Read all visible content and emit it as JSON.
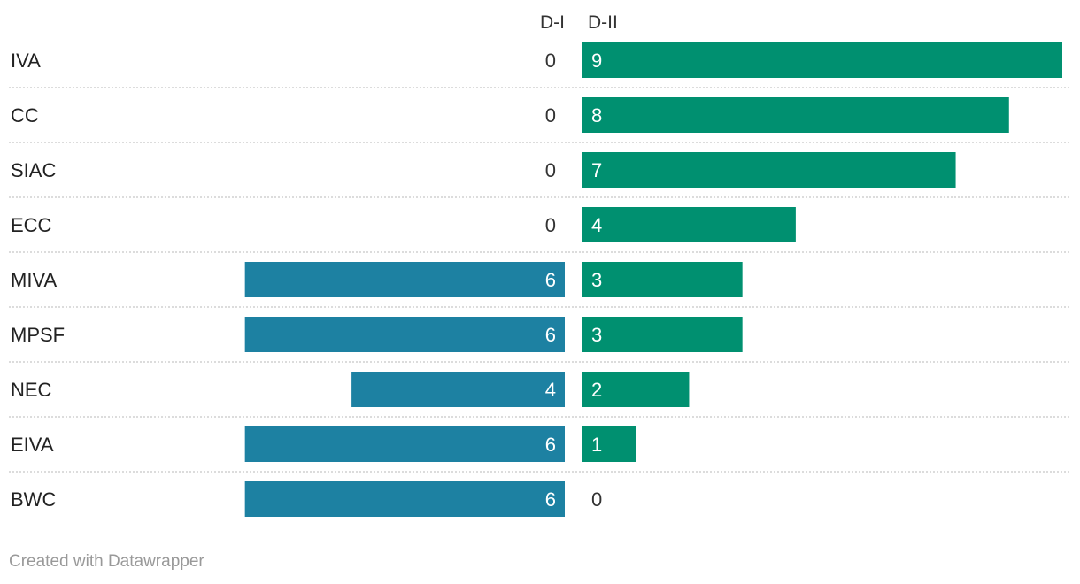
{
  "chart_data": {
    "type": "bar",
    "orientation": "horizontal",
    "categories": [
      "IVA",
      "CC",
      "SIAC",
      "ECC",
      "MIVA",
      "MPSF",
      "NEC",
      "EIVA",
      "BWC"
    ],
    "series": [
      {
        "name": "D-I",
        "values": [
          0,
          0,
          0,
          0,
          6,
          6,
          4,
          6,
          6
        ],
        "color": "#1d81a2"
      },
      {
        "name": "D-II",
        "values": [
          9,
          8,
          7,
          4,
          3,
          3,
          2,
          1,
          0
        ],
        "color": "#009070"
      }
    ],
    "xlim": [
      0,
      9
    ],
    "grid": false
  },
  "footer": {
    "credit": "Created with Datawrapper"
  }
}
